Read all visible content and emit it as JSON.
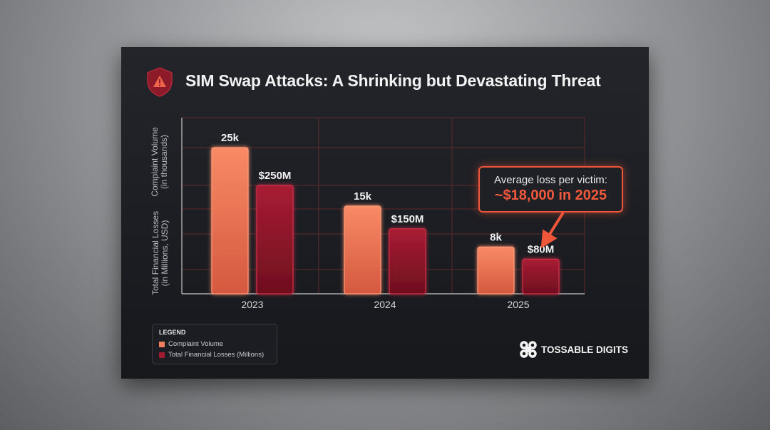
{
  "title": "SIM Swap Attacks: A Shrinking but Devastating Threat",
  "icons": {
    "title_icon": "warning-shield-icon",
    "brand_logo": "four-loop-command-icon"
  },
  "colors": {
    "complaint_volume": "#f0805e",
    "financial_losses": "#a01a30",
    "accent": "#f0563a",
    "grid": "#6a2e2c"
  },
  "chart_data": {
    "type": "bar",
    "title": "SIM Swap Attacks: A Shrinking but Devastating Threat",
    "categories": [
      "2023",
      "2024",
      "2025"
    ],
    "ylabel_primary": "Complaint Volume\n(in thousands)",
    "ylabel_secondary": "Total Financial Losses\n(in Millions, USD)",
    "grid": true,
    "legend_placement": "bottom-left",
    "series": [
      {
        "name": "Complaint Volume",
        "values": [
          25,
          15,
          8
        ],
        "labels": [
          "25k",
          "15k",
          "8k"
        ],
        "unit": "thousands"
      },
      {
        "name": "Total Financial Losses (Millions)",
        "values": [
          250,
          150,
          80
        ],
        "labels": [
          "$250M",
          "$150M",
          "$80M"
        ],
        "unit": "millions USD"
      }
    ],
    "annotation": {
      "line1": "Average loss per victim:",
      "line2": "~$18,000 in 2025",
      "target": "2025"
    }
  },
  "legend": {
    "title": "LEGEND",
    "items": [
      "Complaint Volume",
      "Total Financial Losses (Millions)"
    ]
  },
  "brand": "TOSSABLE DIGITS"
}
